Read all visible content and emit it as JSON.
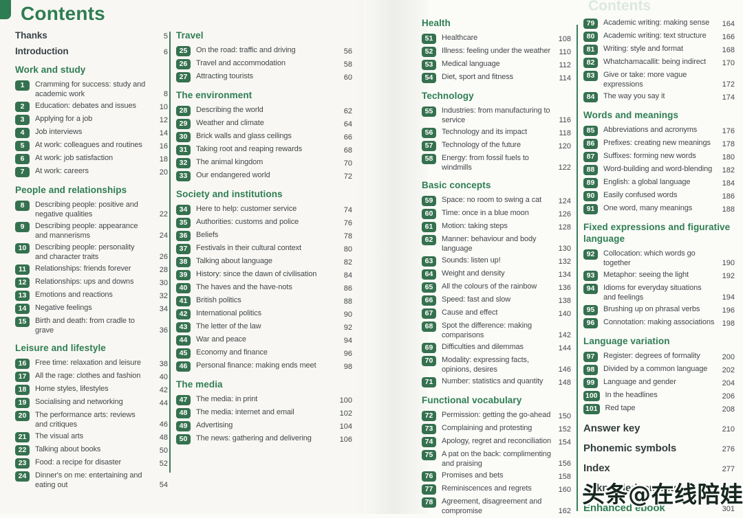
{
  "page_title": "Contents",
  "ghost_title": "Contents",
  "watermark": "头条@在线陪娃",
  "colors": {
    "accent_green": "#2e7d52",
    "badge_green": "#35714f",
    "divider_green": "#3a7c59",
    "text_dark": "#42474a"
  },
  "columns": [
    {
      "sections": [
        {
          "style": "plain",
          "entries": [
            {
              "title": "Thanks",
              "page": "5"
            },
            {
              "title": "Introduction",
              "page": "6"
            }
          ]
        },
        {
          "heading": "Work and study",
          "entries": [
            {
              "num": "1",
              "title": "Cramming for success: study and academic work",
              "page": "8"
            },
            {
              "num": "2",
              "title": "Education: debates and issues",
              "page": "10"
            },
            {
              "num": "3",
              "title": "Applying for a job",
              "page": "12"
            },
            {
              "num": "4",
              "title": "Job interviews",
              "page": "14"
            },
            {
              "num": "5",
              "title": "At work: colleagues and routines",
              "page": "16"
            },
            {
              "num": "6",
              "title": "At work: job satisfaction",
              "page": "18"
            },
            {
              "num": "7",
              "title": "At work: careers",
              "page": "20"
            }
          ]
        },
        {
          "heading": "People and relationships",
          "entries": [
            {
              "num": "8",
              "title": "Describing people: positive and negative qualities",
              "page": "22"
            },
            {
              "num": "9",
              "title": "Describing people: appearance and mannerisms",
              "page": "24"
            },
            {
              "num": "10",
              "title": "Describing people: personality and character traits",
              "page": "26"
            },
            {
              "num": "11",
              "title": "Relationships: friends forever",
              "page": "28"
            },
            {
              "num": "12",
              "title": "Relationships: ups and downs",
              "page": "30"
            },
            {
              "num": "13",
              "title": "Emotions and reactions",
              "page": "32"
            },
            {
              "num": "14",
              "title": "Negative feelings",
              "page": "34"
            },
            {
              "num": "15",
              "title": "Birth and death: from cradle to grave",
              "page": "36"
            }
          ]
        },
        {
          "heading": "Leisure and lifestyle",
          "entries": [
            {
              "num": "16",
              "title": "Free time: relaxation and leisure",
              "page": "38"
            },
            {
              "num": "17",
              "title": "All the rage: clothes and fashion",
              "page": "40"
            },
            {
              "num": "18",
              "title": "Home styles, lifestyles",
              "page": "42"
            },
            {
              "num": "19",
              "title": "Socialising and networking",
              "page": "44"
            },
            {
              "num": "20",
              "title": "The performance arts: reviews and critiques",
              "page": "46"
            },
            {
              "num": "21",
              "title": "The visual arts",
              "page": "48"
            },
            {
              "num": "22",
              "title": "Talking about books",
              "page": "50"
            },
            {
              "num": "23",
              "title": "Food: a recipe for disaster",
              "page": "52"
            },
            {
              "num": "24",
              "title": "Dinner's on me: entertaining and eating out",
              "page": "54"
            }
          ]
        }
      ]
    },
    {
      "sections": [
        {
          "heading": "Travel",
          "entries": [
            {
              "num": "25",
              "title": "On the road: traffic and driving",
              "page": "56"
            },
            {
              "num": "26",
              "title": "Travel and accommodation",
              "page": "58"
            },
            {
              "num": "27",
              "title": "Attracting tourists",
              "page": "60"
            }
          ]
        },
        {
          "heading": "The environment",
          "entries": [
            {
              "num": "28",
              "title": "Describing the world",
              "page": "62"
            },
            {
              "num": "29",
              "title": "Weather and climate",
              "page": "64"
            },
            {
              "num": "30",
              "title": "Brick walls and glass ceilings",
              "page": "66"
            },
            {
              "num": "31",
              "title": "Taking root and reaping rewards",
              "page": "68"
            },
            {
              "num": "32",
              "title": "The animal kingdom",
              "page": "70"
            },
            {
              "num": "33",
              "title": "Our endangered world",
              "page": "72"
            }
          ]
        },
        {
          "heading": "Society and institutions",
          "entries": [
            {
              "num": "34",
              "title": "Here to help: customer service",
              "page": "74"
            },
            {
              "num": "35",
              "title": "Authorities: customs and police",
              "page": "76"
            },
            {
              "num": "36",
              "title": "Beliefs",
              "page": "78"
            },
            {
              "num": "37",
              "title": "Festivals in their cultural context",
              "page": "80"
            },
            {
              "num": "38",
              "title": "Talking about language",
              "page": "82"
            },
            {
              "num": "39",
              "title": "History: since the dawn of civilisation",
              "page": "84"
            },
            {
              "num": "40",
              "title": "The haves and the have-nots",
              "page": "86"
            },
            {
              "num": "41",
              "title": "British politics",
              "page": "88"
            },
            {
              "num": "42",
              "title": "International politics",
              "page": "90"
            },
            {
              "num": "43",
              "title": "The letter of the law",
              "page": "92"
            },
            {
              "num": "44",
              "title": "War and peace",
              "page": "94"
            },
            {
              "num": "45",
              "title": "Economy and finance",
              "page": "96"
            },
            {
              "num": "46",
              "title": "Personal finance: making ends meet",
              "page": "98"
            }
          ]
        },
        {
          "heading": "The media",
          "entries": [
            {
              "num": "47",
              "title": "The media: in print",
              "page": "100"
            },
            {
              "num": "48",
              "title": "The media: internet and email",
              "page": "102"
            },
            {
              "num": "49",
              "title": "Advertising",
              "page": "104"
            },
            {
              "num": "50",
              "title": "The news: gathering and delivering",
              "page": "106"
            }
          ]
        }
      ]
    },
    {
      "sections": [
        {
          "heading": "Health",
          "entries": [
            {
              "num": "51",
              "title": "Healthcare",
              "page": "108"
            },
            {
              "num": "52",
              "title": "Illness: feeling under the weather",
              "page": "110"
            },
            {
              "num": "53",
              "title": "Medical language",
              "page": "112"
            },
            {
              "num": "54",
              "title": "Diet, sport and fitness",
              "page": "114"
            }
          ]
        },
        {
          "heading": "Technology",
          "entries": [
            {
              "num": "55",
              "title": "Industries: from manufacturing to service",
              "page": "116"
            },
            {
              "num": "56",
              "title": "Technology and its impact",
              "page": "118"
            },
            {
              "num": "57",
              "title": "Technology of the future",
              "page": "120"
            },
            {
              "num": "58",
              "title": "Energy: from fossil fuels to windmills",
              "page": "122"
            }
          ]
        },
        {
          "heading": "Basic concepts",
          "entries": [
            {
              "num": "59",
              "title": "Space: no room to swing a cat",
              "page": "124"
            },
            {
              "num": "60",
              "title": "Time: once in a blue moon",
              "page": "126"
            },
            {
              "num": "61",
              "title": "Motion: taking steps",
              "page": "128"
            },
            {
              "num": "62",
              "title": "Manner: behaviour and body language",
              "page": "130"
            },
            {
              "num": "63",
              "title": "Sounds: listen up!",
              "page": "132"
            },
            {
              "num": "64",
              "title": "Weight and density",
              "page": "134"
            },
            {
              "num": "65",
              "title": "All the colours of the rainbow",
              "page": "136"
            },
            {
              "num": "66",
              "title": "Speed: fast and slow",
              "page": "138"
            },
            {
              "num": "67",
              "title": "Cause and effect",
              "page": "140"
            },
            {
              "num": "68",
              "title": "Spot the difference: making comparisons",
              "page": "142"
            },
            {
              "num": "69",
              "title": "Difficulties and dilemmas",
              "page": "144"
            },
            {
              "num": "70",
              "title": "Modality: expressing facts, opinions, desires",
              "page": "146"
            },
            {
              "num": "71",
              "title": "Number: statistics and quantity",
              "page": "148"
            }
          ]
        },
        {
          "heading": "Functional vocabulary",
          "entries": [
            {
              "num": "72",
              "title": "Permission: getting the go-ahead",
              "page": "150"
            },
            {
              "num": "73",
              "title": "Complaining and protesting",
              "page": "152"
            },
            {
              "num": "74",
              "title": "Apology, regret and reconciliation",
              "page": "154"
            },
            {
              "num": "75",
              "title": "A pat on the back: complimenting and praising",
              "page": "156"
            },
            {
              "num": "76",
              "title": "Promises and bets",
              "page": "158"
            },
            {
              "num": "77",
              "title": "Reminiscences and regrets",
              "page": "160"
            },
            {
              "num": "78",
              "title": "Agreement, disagreement and compromise",
              "page": "162"
            }
          ]
        }
      ]
    },
    {
      "sections": [
        {
          "entries": [
            {
              "num": "79",
              "title": "Academic writing: making sense",
              "page": "164"
            },
            {
              "num": "80",
              "title": "Academic writing: text structure",
              "page": "166"
            },
            {
              "num": "81",
              "title": "Writing: style and format",
              "page": "168"
            },
            {
              "num": "82",
              "title": "Whatchamacallit: being indirect",
              "page": "170"
            },
            {
              "num": "83",
              "title": "Give or take: more vague expressions",
              "page": "172"
            },
            {
              "num": "84",
              "title": "The way you say it",
              "page": "174"
            }
          ]
        },
        {
          "heading": "Words and meanings",
          "entries": [
            {
              "num": "85",
              "title": "Abbreviations and acronyms",
              "page": "176"
            },
            {
              "num": "86",
              "title": "Prefixes: creating new meanings",
              "page": "178"
            },
            {
              "num": "87",
              "title": "Suffixes: forming new words",
              "page": "180"
            },
            {
              "num": "88",
              "title": "Word-building and word-blending",
              "page": "182"
            },
            {
              "num": "89",
              "title": "English: a global language",
              "page": "184"
            },
            {
              "num": "90",
              "title": "Easily confused words",
              "page": "186"
            },
            {
              "num": "91",
              "title": "One word, many meanings",
              "page": "188"
            }
          ]
        },
        {
          "heading": "Fixed expressions and figurative language",
          "entries": [
            {
              "num": "92",
              "title": "Collocation: which words go together",
              "page": "190"
            },
            {
              "num": "93",
              "title": "Metaphor: seeing the light",
              "page": "192"
            },
            {
              "num": "94",
              "title": "Idioms for everyday situations and feelings",
              "page": "194"
            },
            {
              "num": "95",
              "title": "Brushing up on phrasal verbs",
              "page": "196"
            },
            {
              "num": "96",
              "title": "Connotation: making associations",
              "page": "198"
            }
          ]
        },
        {
          "heading": "Language variation",
          "entries": [
            {
              "num": "97",
              "title": "Register: degrees of formality",
              "page": "200"
            },
            {
              "num": "98",
              "title": "Divided by a common language",
              "page": "202"
            },
            {
              "num": "99",
              "title": "Language and gender",
              "page": "204"
            },
            {
              "num": "100",
              "title": "In the headlines",
              "page": "206"
            },
            {
              "num": "101",
              "title": "Red tape",
              "page": "208"
            }
          ]
        },
        {
          "style": "big",
          "entries": [
            {
              "title": "Answer key",
              "page": "210"
            },
            {
              "title": "Phonemic symbols",
              "page": "276"
            },
            {
              "title": "Index",
              "page": "277"
            },
            {
              "title": "Acknowledgements",
              "page": ""
            },
            {
              "title": "Enhanced ebook",
              "page": "301",
              "accent": true
            }
          ]
        }
      ]
    }
  ]
}
